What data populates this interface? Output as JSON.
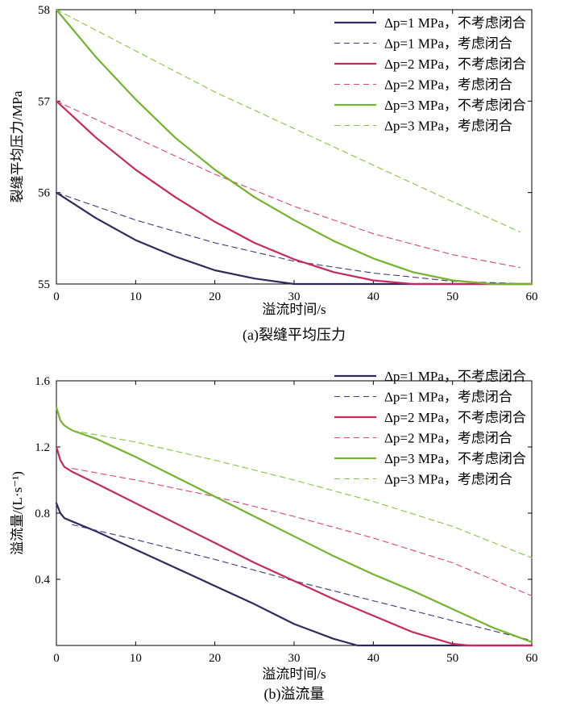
{
  "chart_data": [
    {
      "type": "line",
      "title": "",
      "caption": "(a)裂缝平均压力",
      "xlabel": "溢流时间/s",
      "ylabel": "裂缝平均压力/MPa",
      "xlim": [
        0,
        60
      ],
      "ylim": [
        55,
        58
      ],
      "xticks": [
        "0",
        "10",
        "20",
        "30",
        "40",
        "50",
        "60"
      ],
      "yticks": [
        "55",
        "56",
        "57",
        "58"
      ],
      "grid": false,
      "legend": "top-right",
      "series": [
        {
          "name": "Δp=1 MPa，不考虑闭合",
          "color": "#2e2a5e",
          "dash": "solid",
          "x": [
            0,
            5,
            10,
            15,
            20,
            25,
            30,
            35,
            40,
            50,
            60
          ],
          "y": [
            56.0,
            55.72,
            55.48,
            55.3,
            55.15,
            55.06,
            55.0,
            55.0,
            55.0,
            55.0,
            55.0
          ]
        },
        {
          "name": "Δp=1 MPa，考虑闭合",
          "color": "#3a3a7e",
          "dash": "dashed",
          "x": [
            0,
            10,
            20,
            30,
            40,
            50,
            60
          ],
          "y": [
            56.0,
            55.7,
            55.45,
            55.25,
            55.12,
            55.03,
            55.0
          ]
        },
        {
          "name": "Δp=2 MPa，不考虑闭合",
          "color": "#c8285a",
          "dash": "solid",
          "x": [
            0,
            5,
            10,
            15,
            20,
            25,
            30,
            35,
            40,
            45,
            50,
            60
          ],
          "y": [
            57.0,
            56.6,
            56.25,
            55.95,
            55.68,
            55.45,
            55.27,
            55.13,
            55.04,
            55.0,
            55.0,
            55.0
          ]
        },
        {
          "name": "Δp=2 MPa，考虑闭合",
          "color": "#d94670",
          "dash": "dashed",
          "x": [
            0,
            10,
            20,
            30,
            40,
            50,
            58.5
          ],
          "y": [
            57.0,
            56.6,
            56.2,
            55.85,
            55.55,
            55.32,
            55.18
          ]
        },
        {
          "name": "Δp=3 MPa，不考虑闭合",
          "color": "#72b52c",
          "dash": "solid",
          "x": [
            0,
            5,
            10,
            15,
            20,
            25,
            30,
            35,
            40,
            45,
            50,
            55,
            60
          ],
          "y": [
            58.0,
            57.48,
            57.02,
            56.6,
            56.25,
            55.95,
            55.7,
            55.47,
            55.28,
            55.13,
            55.04,
            55.0,
            55.0
          ]
        },
        {
          "name": "Δp=3 MPa，考虑闭合",
          "color": "#86c440",
          "dash": "dashed",
          "x": [
            0,
            10,
            20,
            30,
            40,
            50,
            58.5
          ],
          "y": [
            58.0,
            57.55,
            57.1,
            56.7,
            56.3,
            55.9,
            55.57
          ]
        }
      ]
    },
    {
      "type": "line",
      "title": "",
      "caption": "(b)溢流量",
      "xlabel": "溢流时间/s",
      "ylabel": "溢流量/(L·s⁻¹)",
      "xlim": [
        0,
        60
      ],
      "ylim": [
        0,
        1.6
      ],
      "xticks": [
        "0",
        "10",
        "20",
        "30",
        "40",
        "50",
        "60"
      ],
      "yticks": [
        "0.4",
        "0.8",
        "1.2",
        "1.6"
      ],
      "grid": false,
      "legend": "top-right",
      "series": [
        {
          "name": "Δp=1 MPa，不考虑闭合",
          "color": "#2e2a5e",
          "dash": "solid",
          "x": [
            0,
            0.5,
            1,
            2,
            5,
            10,
            15,
            20,
            25,
            30,
            35,
            38,
            40,
            50,
            60
          ],
          "y": [
            0.86,
            0.8,
            0.77,
            0.75,
            0.69,
            0.58,
            0.47,
            0.36,
            0.25,
            0.13,
            0.04,
            0.0,
            0.0,
            0.0,
            0.0
          ]
        },
        {
          "name": "Δp=1 MPa，考虑闭合",
          "color": "#3a3a7e",
          "dash": "dashed",
          "x": [
            2,
            10,
            20,
            30,
            40,
            50,
            60
          ],
          "y": [
            0.73,
            0.64,
            0.52,
            0.39,
            0.27,
            0.15,
            0.03
          ]
        },
        {
          "name": "Δp=2 MPa，不考虑闭合",
          "color": "#c8285a",
          "dash": "solid",
          "x": [
            0,
            0.5,
            1,
            2,
            5,
            10,
            15,
            20,
            25,
            30,
            35,
            40,
            45,
            50,
            52,
            60
          ],
          "y": [
            1.2,
            1.12,
            1.08,
            1.05,
            0.98,
            0.86,
            0.74,
            0.62,
            0.5,
            0.39,
            0.28,
            0.18,
            0.08,
            0.01,
            0.0,
            0.0
          ]
        },
        {
          "name": "Δp=2 MPa，考虑闭合",
          "color": "#d94670",
          "dash": "dashed",
          "x": [
            2,
            10,
            20,
            30,
            40,
            50,
            60
          ],
          "y": [
            1.07,
            1.0,
            0.9,
            0.78,
            0.65,
            0.5,
            0.3
          ]
        },
        {
          "name": "Δp=3 MPa，不考虑闭合",
          "color": "#72b52c",
          "dash": "solid",
          "x": [
            0,
            0.5,
            1,
            2,
            5,
            10,
            15,
            20,
            25,
            30,
            35,
            40,
            45,
            50,
            55,
            60
          ],
          "y": [
            1.44,
            1.36,
            1.33,
            1.3,
            1.25,
            1.14,
            1.02,
            0.9,
            0.78,
            0.66,
            0.54,
            0.43,
            0.33,
            0.22,
            0.11,
            0.02
          ]
        },
        {
          "name": "Δp=3 MPa，考虑闭合",
          "color": "#86c440",
          "dash": "dashed",
          "x": [
            2,
            10,
            20,
            30,
            40,
            50,
            60
          ],
          "y": [
            1.3,
            1.23,
            1.12,
            1.0,
            0.87,
            0.72,
            0.53
          ]
        }
      ]
    }
  ]
}
